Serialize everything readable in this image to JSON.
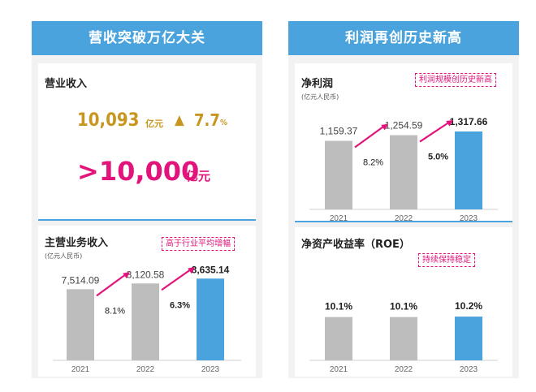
{
  "left_panel": {
    "banner": "营收突破万亿大关",
    "revenue": {
      "title": "营业收入",
      "value": "10,093",
      "value_unit": "亿元",
      "growth_arrow": "▲",
      "growth_value": "7.7",
      "growth_unit": "%",
      "headline": ">10,000",
      "headline_unit": "亿元"
    },
    "main_business": {
      "title": "主营业务收入",
      "unit": "(亿元人民币)",
      "tag": "高于行业平均增幅"
    }
  },
  "right_panel": {
    "banner": "利润再创历史新高",
    "net_profit": {
      "title": "净利润",
      "unit": "(亿元人民币)",
      "tag": "利润规模创历史新高"
    },
    "roe": {
      "title": "净资产收益率（ROE）",
      "tag": "持续保持稳定"
    }
  },
  "colors": {
    "gray_bar": "#bdbdbd",
    "blue_bar": "#4aa3dc",
    "pink": "#e2147b",
    "gold": "#c8961e",
    "banner": "#4aa3dc"
  },
  "chart_data": [
    {
      "id": "main_business",
      "type": "bar",
      "categories": [
        "2021",
        "2022",
        "2023"
      ],
      "values": [
        7514.09,
        8120.58,
        8635.14
      ],
      "labels": [
        "7,514.09",
        "8,120.58",
        "8,635.14"
      ],
      "growth": [
        "8.1%",
        "6.3%"
      ],
      "ylim": [
        0,
        9000
      ]
    },
    {
      "id": "net_profit",
      "type": "bar",
      "categories": [
        "2021",
        "2022",
        "2023"
      ],
      "values": [
        1159.37,
        1254.59,
        1317.66
      ],
      "labels": [
        "1,159.37",
        "1,254.59",
        "1,317.66"
      ],
      "growth": [
        "8.2%",
        "5.0%"
      ],
      "ylim": [
        0,
        1400
      ]
    },
    {
      "id": "roe",
      "type": "bar",
      "categories": [
        "2021",
        "2022",
        "2023"
      ],
      "values": [
        10.1,
        10.1,
        10.2
      ],
      "labels": [
        "10.1%",
        "10.1%",
        "10.2%"
      ],
      "ylim": [
        0,
        14
      ]
    }
  ]
}
